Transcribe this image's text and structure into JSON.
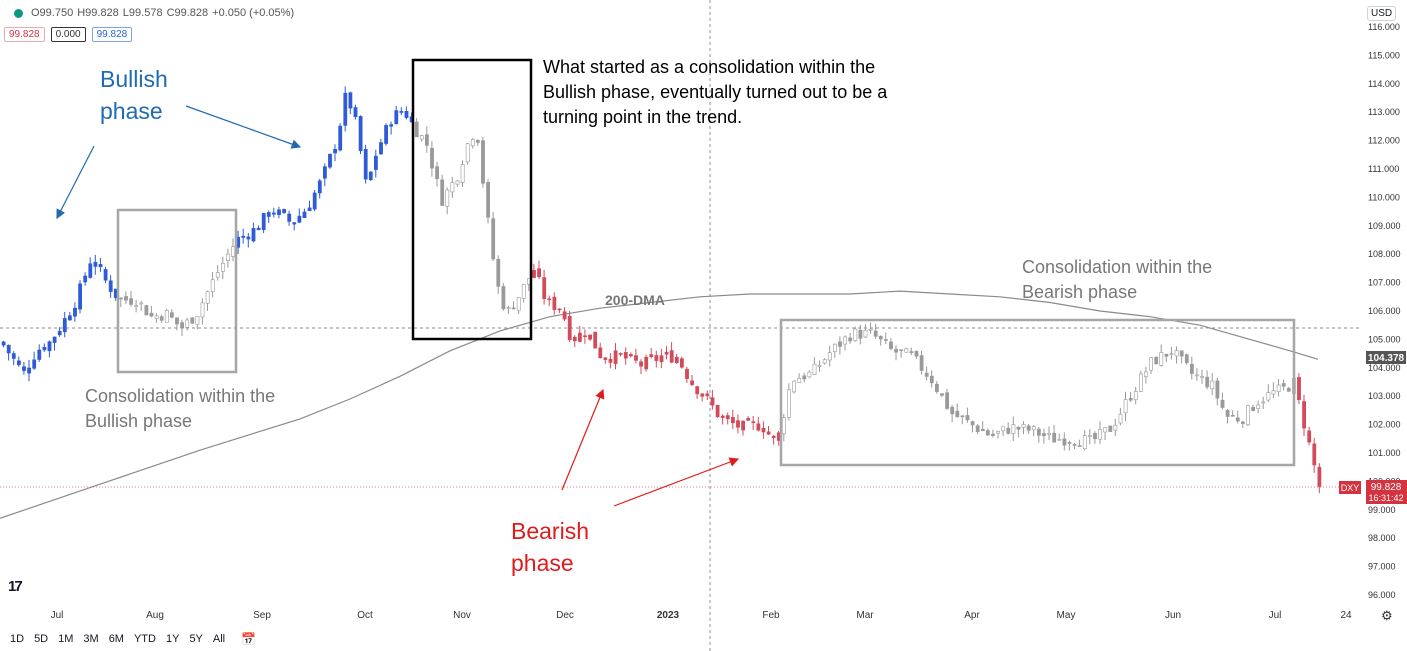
{
  "header": {
    "open": "O99.750",
    "high": "H99.828",
    "low": "L99.578",
    "close": "C99.828",
    "change": "+0.050 (+0.05%)",
    "price_boxes": [
      "99.828",
      "0.000",
      "99.828"
    ]
  },
  "currency": "USD",
  "bottom_bar": {
    "timeframes": [
      "1D",
      "5D",
      "1M",
      "3M",
      "6M",
      "YTD",
      "1Y",
      "5Y",
      "All"
    ]
  },
  "annotations": {
    "bullish_phase": "Bullish\nphase",
    "bearish_phase": "Bearish\nphase",
    "consolidation_bullish": "Consolidation within the\nBullish phase",
    "consolidation_bearish": "Consolidation within the\nBearish phase",
    "turning_point": "What started as a consolidation within the\nBullish phase, eventually turned out to be a\nturning point in the trend.",
    "dma_label": "200-DMA"
  },
  "colors": {
    "bull_candle": "#2f5bd7",
    "bear_candle": "#d24b5a",
    "neutral_candle": "#9a9a9a",
    "box_gray": "#a6a6a6",
    "box_black": "#000000",
    "dma": "#8a8a8a",
    "blue_text": "#1f6ab0",
    "red_text": "#e01b1b",
    "gray_text": "#777777"
  },
  "chart_data": {
    "type": "candlestick",
    "symbol": "DXY",
    "last_price": "99.828",
    "countdown": "16:31:42",
    "marker_price": "104.378",
    "y_ticks": [
      "116.000",
      "115.000",
      "114.000",
      "113.000",
      "112.000",
      "111.000",
      "110.000",
      "109.000",
      "108.000",
      "107.000",
      "106.000",
      "105.000",
      "104.000",
      "103.000",
      "102.000",
      "101.000",
      "100.000",
      "99.000",
      "98.000",
      "97.000",
      "96.000"
    ],
    "x_ticks": [
      "Jul",
      "Aug",
      "Sep",
      "Oct",
      "Nov",
      "Dec",
      "2023",
      "Feb",
      "Mar",
      "Apr",
      "May",
      "Jun",
      "Jul",
      "24"
    ],
    "ylim": [
      95.5,
      116.5
    ],
    "close_path": [
      [
        0,
        104.9
      ],
      [
        10,
        104.4
      ],
      [
        22,
        103.8
      ],
      [
        35,
        104.6
      ],
      [
        48,
        104.9
      ],
      [
        60,
        105.5
      ],
      [
        75,
        106.4
      ],
      [
        90,
        107.9
      ],
      [
        105,
        107.0
      ],
      [
        118,
        106.4
      ],
      [
        135,
        106.4
      ],
      [
        150,
        105.8
      ],
      [
        165,
        105.9
      ],
      [
        180,
        105.4
      ],
      [
        195,
        105.9
      ],
      [
        215,
        107.3
      ],
      [
        235,
        108.5
      ],
      [
        255,
        108.9
      ],
      [
        270,
        109.6
      ],
      [
        290,
        109.1
      ],
      [
        305,
        109.6
      ],
      [
        320,
        110.6
      ],
      [
        335,
        112.0
      ],
      [
        345,
        113.7
      ],
      [
        355,
        112.5
      ],
      [
        365,
        110.3
      ],
      [
        375,
        111.6
      ],
      [
        390,
        112.8
      ],
      [
        402,
        113.1
      ],
      [
        412,
        112.5
      ],
      [
        425,
        111.9
      ],
      [
        440,
        109.9
      ],
      [
        455,
        110.7
      ],
      [
        465,
        111.8
      ],
      [
        475,
        112.5
      ],
      [
        485,
        109.5
      ],
      [
        495,
        107.0
      ],
      [
        505,
        105.9
      ],
      [
        515,
        106.4
      ],
      [
        525,
        107.0
      ],
      [
        532,
        107.5
      ],
      [
        545,
        106.3
      ],
      [
        560,
        106.1
      ],
      [
        570,
        105.0
      ],
      [
        585,
        105.3
      ],
      [
        600,
        104.4
      ],
      [
        620,
        104.4
      ],
      [
        640,
        104.1
      ],
      [
        660,
        104.4
      ],
      [
        675,
        104.4
      ],
      [
        690,
        103.5
      ],
      [
        705,
        102.9
      ],
      [
        720,
        102.2
      ],
      [
        740,
        101.9
      ],
      [
        760,
        102.0
      ],
      [
        775,
        101.3
      ],
      [
        790,
        103.6
      ],
      [
        810,
        103.8
      ],
      [
        830,
        104.6
      ],
      [
        850,
        105.2
      ],
      [
        870,
        105.2
      ],
      [
        890,
        104.6
      ],
      [
        910,
        104.4
      ],
      [
        930,
        103.6
      ],
      [
        950,
        102.4
      ],
      [
        970,
        102.0
      ],
      [
        990,
        101.6
      ],
      [
        1010,
        101.9
      ],
      [
        1030,
        101.8
      ],
      [
        1050,
        101.5
      ],
      [
        1070,
        101.5
      ],
      [
        1090,
        101.4
      ],
      [
        1110,
        101.9
      ],
      [
        1130,
        103.1
      ],
      [
        1150,
        104.2
      ],
      [
        1170,
        104.6
      ],
      [
        1190,
        103.8
      ],
      [
        1210,
        103.4
      ],
      [
        1225,
        102.3
      ],
      [
        1240,
        102.2
      ],
      [
        1255,
        102.8
      ],
      [
        1270,
        103.1
      ],
      [
        1285,
        103.3
      ],
      [
        1292,
        103.5
      ],
      [
        1300,
        102.4
      ],
      [
        1307,
        101.4
      ],
      [
        1313,
        100.5
      ],
      [
        1318,
        99.8
      ]
    ],
    "dma_path": [
      [
        0,
        98.7
      ],
      [
        100,
        99.9
      ],
      [
        200,
        101.1
      ],
      [
        300,
        102.2
      ],
      [
        350,
        102.9
      ],
      [
        400,
        103.7
      ],
      [
        450,
        104.6
      ],
      [
        500,
        105.3
      ],
      [
        550,
        105.8
      ],
      [
        600,
        106.1
      ],
      [
        650,
        106.3
      ],
      [
        700,
        106.5
      ],
      [
        750,
        106.6
      ],
      [
        800,
        106.6
      ],
      [
        850,
        106.6
      ],
      [
        900,
        106.7
      ],
      [
        950,
        106.6
      ],
      [
        1000,
        106.5
      ],
      [
        1050,
        106.3
      ],
      [
        1100,
        106.0
      ],
      [
        1150,
        105.8
      ],
      [
        1200,
        105.5
      ],
      [
        1250,
        105.0
      ],
      [
        1290,
        104.6
      ],
      [
        1318,
        104.3
      ]
    ]
  }
}
